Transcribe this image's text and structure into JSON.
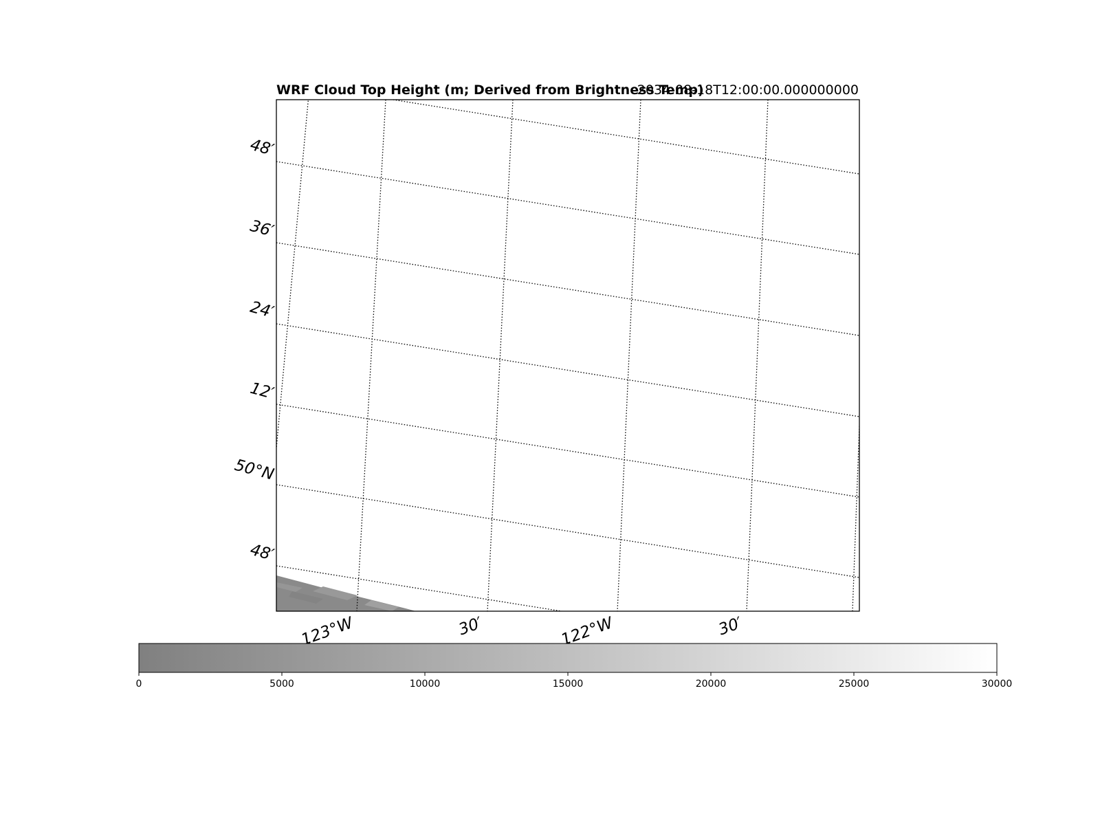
{
  "map": {
    "title": "WRF Cloud Top Height (m; Derived from Brightness Temp)",
    "timestamp": "2034-08-18T12:00:00.000000000",
    "lat_labels": [
      "48′",
      "36′",
      "24′",
      "12′",
      "50°N",
      "48′"
    ],
    "lon_labels": [
      "123°W",
      "30′",
      "122°W",
      "30′"
    ],
    "gridline_style": "dotted",
    "field_colors": [
      "#8a8a8a",
      "#999999"
    ]
  },
  "colorbar": {
    "min": 0,
    "max": 30000,
    "ticks": [
      "0",
      "5000",
      "10000",
      "15000",
      "20000",
      "25000",
      "30000"
    ],
    "color_low": "#808080",
    "color_high": "#ffffff"
  }
}
